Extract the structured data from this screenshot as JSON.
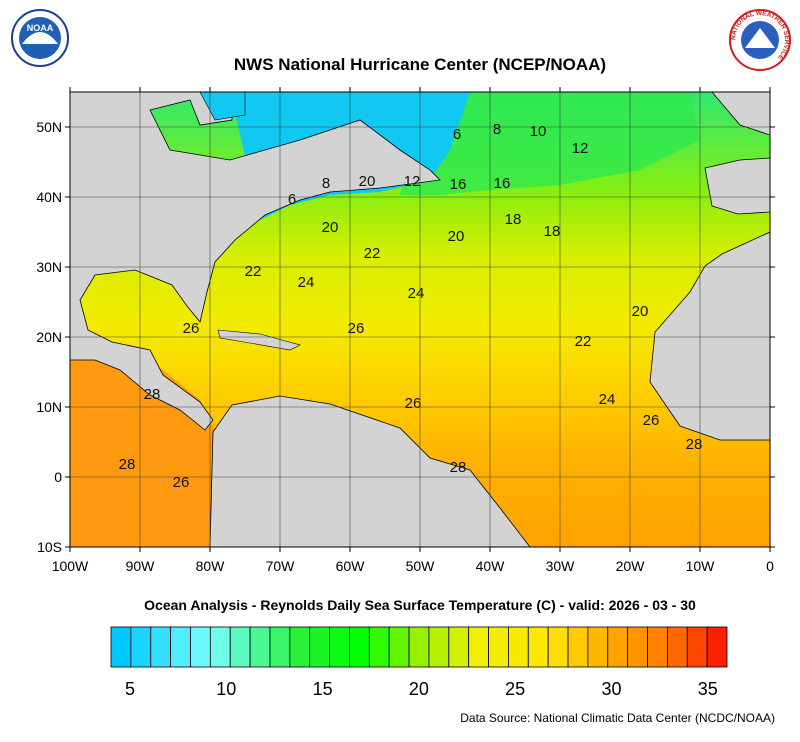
{
  "header": {
    "title": "NWS National Hurricane Center (NCEP/NOAA)",
    "noaa_logo": "NOAA",
    "nws_logo": "NATIONAL WEATHER SERVICE"
  },
  "map": {
    "lat_labels": [
      "50N",
      "40N",
      "30N",
      "20N",
      "10N",
      "0",
      "10S"
    ],
    "lon_labels": [
      "100W",
      "90W",
      "80W",
      "70W",
      "60W",
      "50W",
      "40W",
      "30W",
      "20W",
      "10W",
      "0"
    ],
    "contour_labels": [
      6,
      8,
      10,
      12,
      6,
      8,
      20,
      12,
      16,
      16,
      18,
      18,
      20,
      22,
      20,
      22,
      24,
      24,
      20,
      26,
      26,
      22,
      28,
      26,
      24,
      26,
      28,
      28,
      28,
      26
    ]
  },
  "caption": "Ocean Analysis - Reynolds Daily Sea Surface Temperature (C) - valid: 2026 - 03 - 30",
  "colorbar": {
    "labels": [
      "5",
      "10",
      "15",
      "20",
      "25",
      "30",
      "35"
    ]
  },
  "source": "Data Source: National Climatic Data Center (NCDC/NOAA)"
}
